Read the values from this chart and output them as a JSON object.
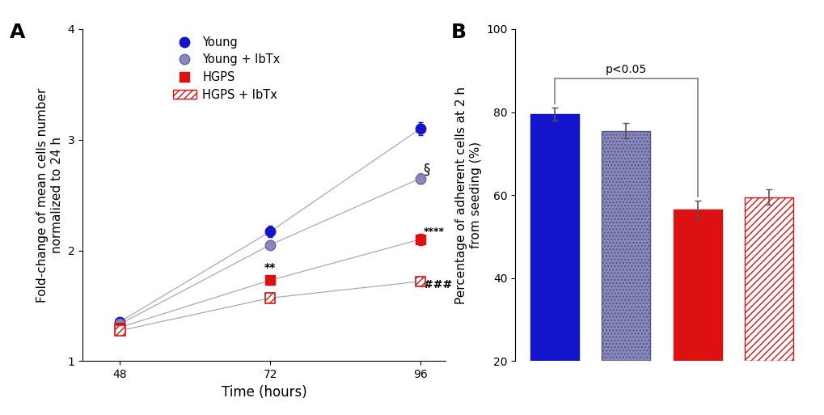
{
  "panel_A": {
    "time_points": [
      48,
      72,
      96
    ],
    "Young": {
      "values": [
        1.355,
        2.17,
        3.1
      ],
      "sem": [
        0.03,
        0.05,
        0.06
      ]
    },
    "Young_IbTx": {
      "values": [
        1.335,
        2.05,
        2.65
      ],
      "sem": [
        0.025,
        0.04,
        0.05
      ]
    },
    "HGPS": {
      "values": [
        1.305,
        1.73,
        2.1
      ],
      "sem": [
        0.025,
        0.04,
        0.05
      ]
    },
    "HGPS_IbTx": {
      "values": [
        1.275,
        1.57,
        1.72
      ],
      "sem": [
        0.025,
        0.03,
        0.04
      ]
    },
    "ylabel": "Fold-change of mean cells number\nnormalized to 24 h",
    "xlabel": "Time (hours)",
    "ylim": [
      1.0,
      4.0
    ],
    "yticks": [
      1,
      2,
      3,
      4
    ],
    "xticks": [
      48,
      72,
      96
    ],
    "young_color": "#1414cc",
    "young_ibtx_color": "#8888bb",
    "hgps_color": "#dd1111",
    "gray_line": "#aaaaaa"
  },
  "panel_B": {
    "values": [
      79.5,
      75.5,
      56.5,
      59.5
    ],
    "sem": [
      1.5,
      1.8,
      2.2,
      1.8
    ],
    "ylabel": "Percentage of adherent cells at 2 h\nfrom seeding (%)",
    "ylim": [
      20,
      100
    ],
    "yticks": [
      20,
      40,
      60,
      80,
      100
    ],
    "young_color": "#1414cc",
    "young_ibtx_color": "#8888bb",
    "hgps_color": "#dd1111",
    "bracket_y": 88,
    "bracket_text": "p<0.05"
  }
}
